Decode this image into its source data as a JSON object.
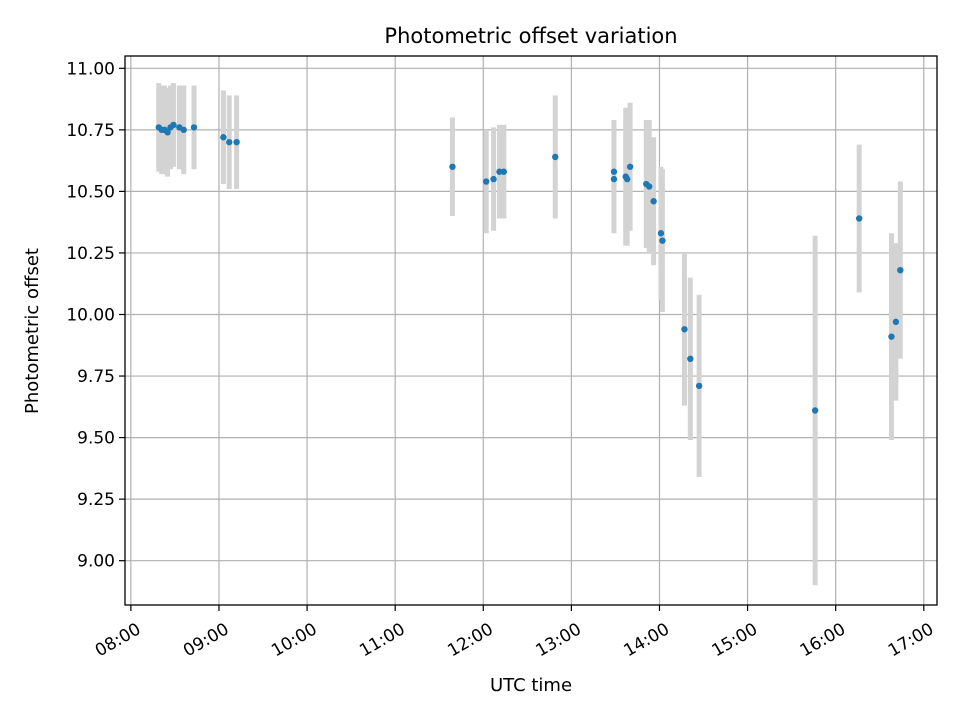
{
  "chart_data": {
    "type": "scatter",
    "title": "Photometric offset variation",
    "xlabel": "UTC time",
    "ylabel": "Photometric offset",
    "x_tick_labels": [
      "08:00",
      "09:00",
      "10:00",
      "11:00",
      "12:00",
      "13:00",
      "14:00",
      "15:00",
      "16:00",
      "17:00"
    ],
    "y_tick_labels": [
      "9.00",
      "9.25",
      "9.50",
      "9.75",
      "10.00",
      "10.25",
      "10.50",
      "10.75",
      "11.00"
    ],
    "xlim": [
      "07:56",
      "17:09"
    ],
    "ylim": [
      8.82,
      11.05
    ],
    "grid": true,
    "colors": {
      "points": "#1f77b4",
      "errorbars": "#d3d3d3",
      "grid": "#b0b0b0"
    },
    "points": [
      {
        "time": "08:19",
        "y": 10.76,
        "err": 0.18
      },
      {
        "time": "08:21",
        "y": 10.75,
        "err": 0.18
      },
      {
        "time": "08:23",
        "y": 10.75,
        "err": 0.18
      },
      {
        "time": "08:25",
        "y": 10.74,
        "err": 0.18
      },
      {
        "time": "08:27",
        "y": 10.76,
        "err": 0.17
      },
      {
        "time": "08:29",
        "y": 10.77,
        "err": 0.17
      },
      {
        "time": "08:33",
        "y": 10.76,
        "err": 0.17
      },
      {
        "time": "08:36",
        "y": 10.75,
        "err": 0.18
      },
      {
        "time": "08:43",
        "y": 10.76,
        "err": 0.17
      },
      {
        "time": "09:03",
        "y": 10.72,
        "err": 0.19
      },
      {
        "time": "09:07",
        "y": 10.7,
        "err": 0.19
      },
      {
        "time": "09:12",
        "y": 10.7,
        "err": 0.19
      },
      {
        "time": "11:39",
        "y": 10.6,
        "err": 0.2
      },
      {
        "time": "12:02",
        "y": 10.54,
        "err": 0.21
      },
      {
        "time": "12:07",
        "y": 10.55,
        "err": 0.21
      },
      {
        "time": "12:11",
        "y": 10.58,
        "err": 0.19
      },
      {
        "time": "12:14",
        "y": 10.58,
        "err": 0.19
      },
      {
        "time": "12:49",
        "y": 10.64,
        "err": 0.25
      },
      {
        "time": "13:29",
        "y": 10.58,
        "err": 0.21
      },
      {
        "time": "13:29",
        "y": 10.55,
        "err": 0.22
      },
      {
        "time": "13:37",
        "y": 10.56,
        "err": 0.28
      },
      {
        "time": "13:38",
        "y": 10.55,
        "err": 0.27
      },
      {
        "time": "13:40",
        "y": 10.6,
        "err": 0.26
      },
      {
        "time": "13:51",
        "y": 10.53,
        "err": 0.26
      },
      {
        "time": "13:53",
        "y": 10.52,
        "err": 0.27
      },
      {
        "time": "13:56",
        "y": 10.46,
        "err": 0.26
      },
      {
        "time": "14:01",
        "y": 10.33,
        "err": 0.27
      },
      {
        "time": "14:02",
        "y": 10.3,
        "err": 0.29
      },
      {
        "time": "14:17",
        "y": 9.94,
        "err": 0.31
      },
      {
        "time": "14:21",
        "y": 9.82,
        "err": 0.33
      },
      {
        "time": "14:27",
        "y": 9.71,
        "err": 0.37
      },
      {
        "time": "15:46",
        "y": 9.61,
        "err": 0.71
      },
      {
        "time": "16:16",
        "y": 10.39,
        "err": 0.3
      },
      {
        "time": "16:38",
        "y": 9.91,
        "err": 0.42
      },
      {
        "time": "16:41",
        "y": 9.97,
        "err": 0.32
      },
      {
        "time": "16:44",
        "y": 10.18,
        "err": 0.36
      }
    ]
  }
}
